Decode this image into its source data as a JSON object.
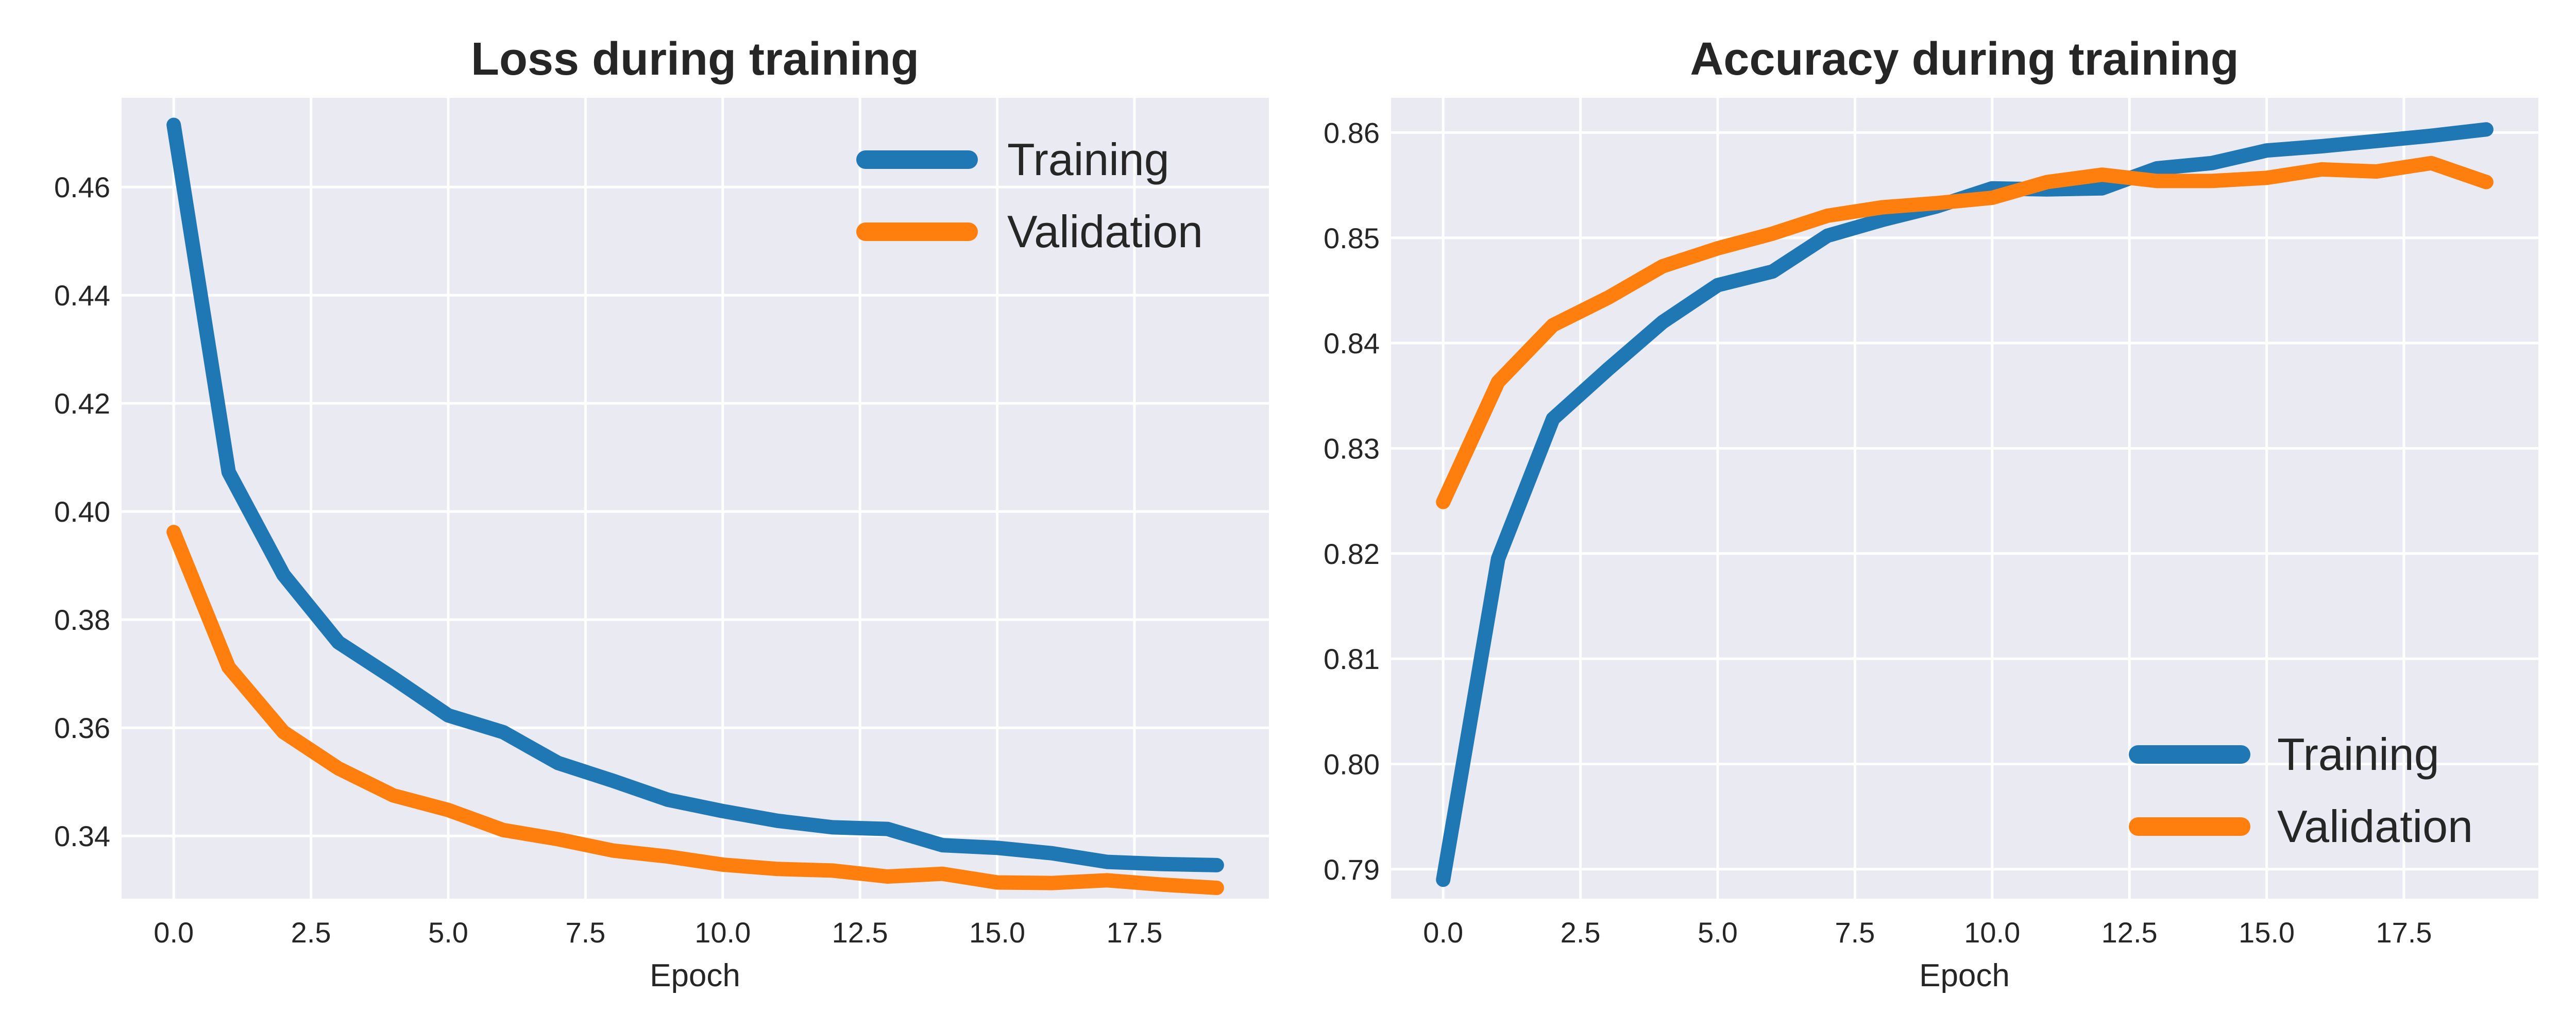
{
  "chart_data": [
    {
      "type": "line",
      "title": "Loss during training",
      "xlabel": "Epoch",
      "ylabel": "",
      "x": [
        0,
        1,
        2,
        3,
        4,
        5,
        6,
        7,
        8,
        9,
        10,
        11,
        12,
        13,
        14,
        15,
        16,
        17,
        18,
        19
      ],
      "xlim": [
        -0.95,
        19.95
      ],
      "ylim": [
        0.3284,
        0.4765
      ],
      "xticks": [
        0,
        2.5,
        5,
        7.5,
        10,
        12.5,
        15,
        17.5
      ],
      "xtick_labels": [
        "0.0",
        "2.5",
        "5.0",
        "7.5",
        "10.0",
        "12.5",
        "15.0",
        "17.5"
      ],
      "yticks": [
        0.34,
        0.36,
        0.38,
        0.4,
        0.42,
        0.44,
        0.46
      ],
      "ytick_labels": [
        "0.34",
        "0.36",
        "0.38",
        "0.40",
        "0.42",
        "0.44",
        "0.46"
      ],
      "grid": true,
      "legend_position": "top-right",
      "series": [
        {
          "name": "Training",
          "color": "#1f77b4",
          "values": [
            0.4715,
            0.4073,
            0.3883,
            0.3758,
            0.3692,
            0.3623,
            0.3592,
            0.3535,
            0.3502,
            0.3467,
            0.3446,
            0.3428,
            0.3416,
            0.3413,
            0.3383,
            0.3378,
            0.3368,
            0.3352,
            0.3348,
            0.3346
          ]
        },
        {
          "name": "Validation",
          "color": "#ff7f0e",
          "values": [
            0.3962,
            0.3712,
            0.3592,
            0.3525,
            0.3475,
            0.3448,
            0.3411,
            0.3394,
            0.3373,
            0.3362,
            0.3347,
            0.3339,
            0.3336,
            0.3325,
            0.333,
            0.3314,
            0.3313,
            0.3318,
            0.331,
            0.3304
          ]
        }
      ]
    },
    {
      "type": "line",
      "title": "Accuracy during training",
      "xlabel": "Epoch",
      "ylabel": "",
      "x": [
        0,
        1,
        2,
        3,
        4,
        5,
        6,
        7,
        8,
        9,
        10,
        11,
        12,
        13,
        14,
        15,
        16,
        17,
        18,
        19
      ],
      "xlim": [
        -0.95,
        19.95
      ],
      "ylim": [
        0.7872,
        0.8633
      ],
      "xticks": [
        0,
        2.5,
        5,
        7.5,
        10,
        12.5,
        15,
        17.5
      ],
      "xtick_labels": [
        "0.0",
        "2.5",
        "5.0",
        "7.5",
        "10.0",
        "12.5",
        "15.0",
        "17.5"
      ],
      "yticks": [
        0.79,
        0.8,
        0.81,
        0.82,
        0.83,
        0.84,
        0.85,
        0.86
      ],
      "ytick_labels": [
        "0.79",
        "0.80",
        "0.81",
        "0.82",
        "0.83",
        "0.84",
        "0.85",
        "0.86"
      ],
      "grid": true,
      "legend_position": "bottom-right",
      "series": [
        {
          "name": "Training",
          "color": "#1f77b4",
          "values": [
            0.789,
            0.8195,
            0.8328,
            0.8375,
            0.842,
            0.8455,
            0.8468,
            0.8502,
            0.8517,
            0.853,
            0.8547,
            0.8546,
            0.8547,
            0.8566,
            0.8571,
            0.8583,
            0.8587,
            0.8592,
            0.8597,
            0.8603
          ]
        },
        {
          "name": "Validation",
          "color": "#ff7f0e",
          "values": [
            0.8249,
            0.8363,
            0.8417,
            0.8443,
            0.8473,
            0.849,
            0.8504,
            0.8521,
            0.8529,
            0.8533,
            0.8538,
            0.8553,
            0.856,
            0.8554,
            0.8554,
            0.8557,
            0.8565,
            0.8563,
            0.8571,
            0.8553
          ]
        }
      ]
    }
  ]
}
